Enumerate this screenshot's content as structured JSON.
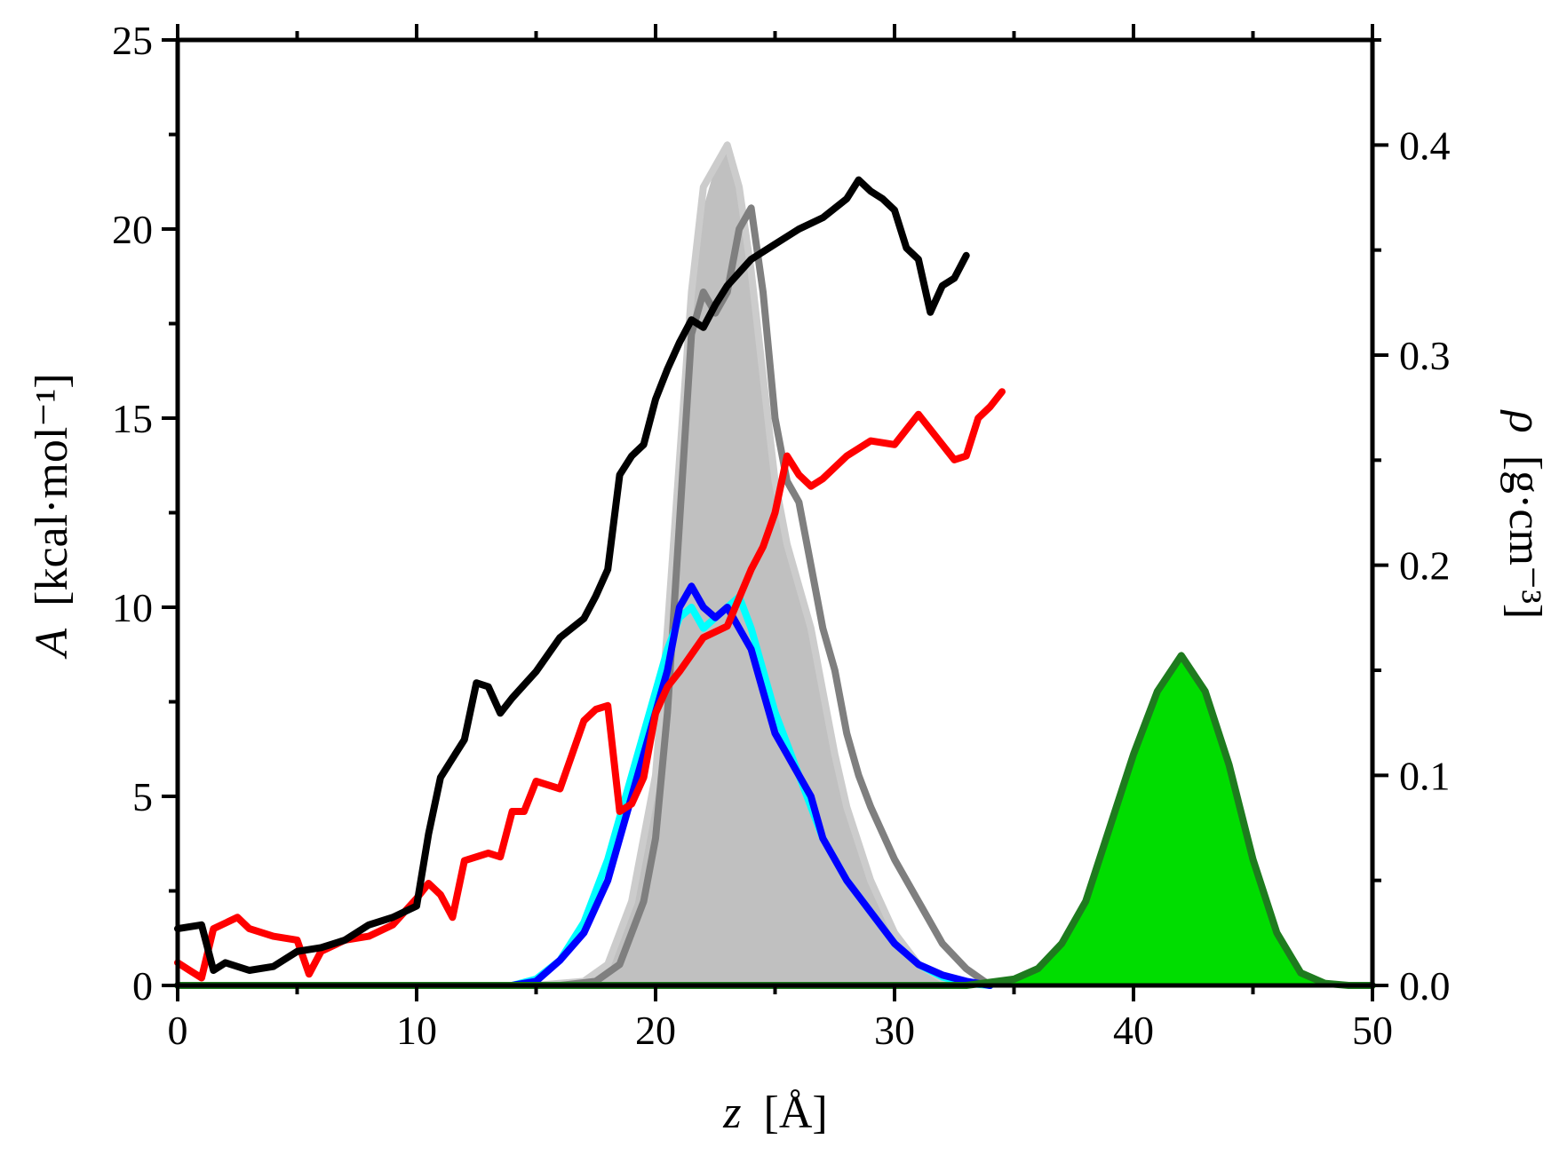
{
  "chart_data": {
    "type": "line",
    "x": {
      "label": "z [Å]",
      "label_var": "z",
      "label_unit": "[Å]",
      "range": [
        0,
        50
      ],
      "ticks": [
        0,
        10,
        20,
        30,
        40,
        50
      ]
    },
    "y_left": {
      "label_var": "A",
      "label_unit": "[kcal·mol⁻¹]",
      "range": [
        0,
        25
      ],
      "ticks": [
        0,
        5,
        10,
        15,
        20,
        25
      ]
    },
    "y_right": {
      "label_var": "ρ",
      "label_unit": "[g·cm⁻³]",
      "range": [
        0,
        0.45
      ],
      "ticks": [
        0.0,
        0.1,
        0.2,
        0.3,
        0.4
      ],
      "tick_labels": [
        "0.0",
        "0.1",
        "0.2",
        "0.3",
        "0.4"
      ]
    },
    "x_tick_labels": [
      "0",
      "10",
      "20",
      "30",
      "40",
      "50"
    ],
    "y_left_tick_labels": [
      "0",
      "5",
      "10",
      "15",
      "20",
      "25"
    ],
    "series": [
      {
        "axis": "right",
        "kind": "area",
        "color": "#c0c0c0",
        "points": [
          [
            15,
            0
          ],
          [
            17,
            0.002
          ],
          [
            18,
            0.01
          ],
          [
            19,
            0.04
          ],
          [
            20,
            0.1
          ],
          [
            20.5,
            0.16
          ],
          [
            21,
            0.24
          ],
          [
            21.5,
            0.32
          ],
          [
            22,
            0.37
          ],
          [
            22.5,
            0.39
          ],
          [
            23,
            0.4
          ],
          [
            23.5,
            0.38
          ],
          [
            24,
            0.34
          ],
          [
            24.5,
            0.29
          ],
          [
            25,
            0.24
          ],
          [
            25.5,
            0.21
          ],
          [
            26,
            0.19
          ],
          [
            26.5,
            0.17
          ],
          [
            27,
            0.14
          ],
          [
            27.5,
            0.11
          ],
          [
            28,
            0.085
          ],
          [
            29,
            0.05
          ],
          [
            30,
            0.025
          ],
          [
            31,
            0.01
          ],
          [
            32,
            0.003
          ],
          [
            33,
            0
          ]
        ]
      },
      {
        "axis": "right",
        "kind": "line",
        "color": "#cccccc",
        "points": [
          [
            15,
            0
          ],
          [
            17,
            0.002
          ],
          [
            18,
            0.01
          ],
          [
            19,
            0.04
          ],
          [
            20,
            0.1
          ],
          [
            20.5,
            0.17
          ],
          [
            21,
            0.25
          ],
          [
            21.5,
            0.33
          ],
          [
            22,
            0.38
          ],
          [
            22.5,
            0.39
          ],
          [
            23,
            0.4
          ],
          [
            23.5,
            0.38
          ],
          [
            24,
            0.34
          ],
          [
            24.5,
            0.29
          ],
          [
            25,
            0.24
          ],
          [
            25.5,
            0.21
          ],
          [
            26,
            0.19
          ],
          [
            26.5,
            0.17
          ],
          [
            27,
            0.14
          ],
          [
            27.5,
            0.11
          ],
          [
            28,
            0.085
          ],
          [
            29,
            0.05
          ],
          [
            30,
            0.025
          ],
          [
            31,
            0.01
          ],
          [
            32,
            0.003
          ],
          [
            33,
            0
          ]
        ]
      },
      {
        "axis": "right",
        "kind": "line",
        "color": "#7f7f7f",
        "points": [
          [
            16,
            0
          ],
          [
            17.5,
            0.002
          ],
          [
            18.5,
            0.01
          ],
          [
            19.5,
            0.04
          ],
          [
            20,
            0.07
          ],
          [
            20.5,
            0.13
          ],
          [
            21,
            0.22
          ],
          [
            21.5,
            0.31
          ],
          [
            22,
            0.33
          ],
          [
            22.5,
            0.32
          ],
          [
            23,
            0.33
          ],
          [
            23.5,
            0.36
          ],
          [
            24,
            0.37
          ],
          [
            24.5,
            0.33
          ],
          [
            25,
            0.27
          ],
          [
            25.5,
            0.24
          ],
          [
            26,
            0.23
          ],
          [
            26.5,
            0.2
          ],
          [
            27,
            0.17
          ],
          [
            27.5,
            0.15
          ],
          [
            28,
            0.12
          ],
          [
            28.5,
            0.1
          ],
          [
            29,
            0.085
          ],
          [
            30,
            0.06
          ],
          [
            31,
            0.04
          ],
          [
            32,
            0.02
          ],
          [
            33,
            0.008
          ],
          [
            34,
            0
          ]
        ]
      },
      {
        "axis": "right",
        "kind": "line",
        "color": "#00ffff",
        "points": [
          [
            14,
            0
          ],
          [
            15,
            0.003
          ],
          [
            16,
            0.012
          ],
          [
            17,
            0.03
          ],
          [
            18,
            0.06
          ],
          [
            19,
            0.1
          ],
          [
            20,
            0.14
          ],
          [
            20.5,
            0.16
          ],
          [
            21,
            0.175
          ],
          [
            21.5,
            0.18
          ],
          [
            22,
            0.17
          ],
          [
            22.5,
            0.175
          ],
          [
            23,
            0.18
          ],
          [
            23.5,
            0.185
          ],
          [
            24,
            0.17
          ],
          [
            24.5,
            0.15
          ],
          [
            25,
            0.13
          ],
          [
            25.5,
            0.115
          ],
          [
            26,
            0.1
          ],
          [
            26.5,
            0.085
          ],
          [
            27,
            0.07
          ],
          [
            27.5,
            0.06
          ],
          [
            28,
            0.05
          ],
          [
            29,
            0.035
          ],
          [
            30,
            0.02
          ],
          [
            31,
            0.01
          ],
          [
            32,
            0.004
          ],
          [
            33,
            0.001
          ],
          [
            34,
            0
          ]
        ]
      },
      {
        "axis": "right",
        "kind": "line",
        "color": "#0000ff",
        "points": [
          [
            14,
            0
          ],
          [
            15,
            0.002
          ],
          [
            16,
            0.012
          ],
          [
            17,
            0.025
          ],
          [
            18,
            0.05
          ],
          [
            19,
            0.09
          ],
          [
            20,
            0.13
          ],
          [
            20.5,
            0.15
          ],
          [
            21,
            0.18
          ],
          [
            21.5,
            0.19
          ],
          [
            22,
            0.18
          ],
          [
            22.5,
            0.175
          ],
          [
            23,
            0.18
          ],
          [
            23.5,
            0.17
          ],
          [
            24,
            0.16
          ],
          [
            24.5,
            0.14
          ],
          [
            25,
            0.12
          ],
          [
            25.5,
            0.11
          ],
          [
            26,
            0.1
          ],
          [
            26.5,
            0.09
          ],
          [
            27,
            0.07
          ],
          [
            27.5,
            0.06
          ],
          [
            28,
            0.05
          ],
          [
            29,
            0.035
          ],
          [
            30,
            0.02
          ],
          [
            31,
            0.01
          ],
          [
            32,
            0.005
          ],
          [
            33,
            0.002
          ],
          [
            34,
            0
          ]
        ]
      },
      {
        "axis": "right",
        "kind": "area",
        "color": "#00dd00",
        "points": [
          [
            33,
            0
          ],
          [
            35,
            0.003
          ],
          [
            36,
            0.008
          ],
          [
            37,
            0.02
          ],
          [
            38,
            0.04
          ],
          [
            39,
            0.075
          ],
          [
            40,
            0.11
          ],
          [
            41,
            0.14
          ],
          [
            42,
            0.157
          ],
          [
            43,
            0.14
          ],
          [
            44,
            0.105
          ],
          [
            45,
            0.06
          ],
          [
            46,
            0.025
          ],
          [
            47,
            0.006
          ],
          [
            48,
            0.001
          ],
          [
            49,
            0
          ]
        ]
      },
      {
        "axis": "right",
        "kind": "line",
        "color": "#1e7b1e",
        "points": [
          [
            0,
            0
          ],
          [
            33,
            0
          ],
          [
            35,
            0.003
          ],
          [
            36,
            0.008
          ],
          [
            37,
            0.02
          ],
          [
            38,
            0.04
          ],
          [
            39,
            0.075
          ],
          [
            40,
            0.11
          ],
          [
            41,
            0.14
          ],
          [
            42,
            0.157
          ],
          [
            43,
            0.14
          ],
          [
            44,
            0.105
          ],
          [
            45,
            0.06
          ],
          [
            46,
            0.025
          ],
          [
            47,
            0.006
          ],
          [
            48,
            0.001
          ],
          [
            49,
            0
          ],
          [
            50,
            0
          ]
        ]
      },
      {
        "axis": "left",
        "kind": "line",
        "color": "#ff0000",
        "points": [
          [
            0,
            0.6
          ],
          [
            0.5,
            0.4
          ],
          [
            1,
            0.2
          ],
          [
            1.5,
            1.5
          ],
          [
            2.5,
            1.8
          ],
          [
            3,
            1.5
          ],
          [
            4,
            1.3
          ],
          [
            5,
            1.2
          ],
          [
            5.5,
            0.3
          ],
          [
            6,
            0.9
          ],
          [
            7,
            1.2
          ],
          [
            8,
            1.3
          ],
          [
            9,
            1.6
          ],
          [
            10,
            2.3
          ],
          [
            10.5,
            2.7
          ],
          [
            11,
            2.4
          ],
          [
            11.5,
            1.8
          ],
          [
            12,
            3.3
          ],
          [
            13,
            3.5
          ],
          [
            13.5,
            3.4
          ],
          [
            14,
            4.6
          ],
          [
            14.5,
            4.6
          ],
          [
            15,
            5.4
          ],
          [
            16,
            5.2
          ],
          [
            16.5,
            6.1
          ],
          [
            17,
            7.0
          ],
          [
            17.5,
            7.3
          ],
          [
            18,
            7.4
          ],
          [
            18.5,
            4.6
          ],
          [
            19,
            4.8
          ],
          [
            19.5,
            5.5
          ],
          [
            20,
            7.2
          ],
          [
            20.5,
            7.9
          ],
          [
            21,
            8.3
          ],
          [
            22,
            9.2
          ],
          [
            23,
            9.5
          ],
          [
            24,
            11.0
          ],
          [
            24.5,
            11.6
          ],
          [
            25,
            12.5
          ],
          [
            25.5,
            14.0
          ],
          [
            26,
            13.5
          ],
          [
            26.5,
            13.2
          ],
          [
            27,
            13.4
          ],
          [
            28,
            14.0
          ],
          [
            29,
            14.4
          ],
          [
            30,
            14.3
          ],
          [
            31,
            15.1
          ],
          [
            32,
            14.3
          ],
          [
            32.5,
            13.9
          ],
          [
            33,
            14.0
          ],
          [
            33.5,
            15.0
          ],
          [
            34,
            15.3
          ],
          [
            34.5,
            15.7
          ]
        ]
      },
      {
        "axis": "left",
        "kind": "line",
        "color": "#000000",
        "points": [
          [
            0,
            1.5
          ],
          [
            1,
            1.6
          ],
          [
            1.5,
            0.4
          ],
          [
            2,
            0.6
          ],
          [
            3,
            0.4
          ],
          [
            4,
            0.5
          ],
          [
            5,
            0.9
          ],
          [
            6,
            1.0
          ],
          [
            7,
            1.2
          ],
          [
            8,
            1.6
          ],
          [
            9,
            1.8
          ],
          [
            10,
            2.1
          ],
          [
            10.5,
            4.0
          ],
          [
            11,
            5.5
          ],
          [
            12,
            6.5
          ],
          [
            12.5,
            8.0
          ],
          [
            13,
            7.9
          ],
          [
            13.5,
            7.2
          ],
          [
            14,
            7.6
          ],
          [
            15,
            8.3
          ],
          [
            16,
            9.2
          ],
          [
            17,
            9.7
          ],
          [
            17.5,
            10.3
          ],
          [
            18,
            11.0
          ],
          [
            18.5,
            13.5
          ],
          [
            19,
            14.0
          ],
          [
            19.5,
            14.3
          ],
          [
            20,
            15.5
          ],
          [
            20.5,
            16.3
          ],
          [
            21,
            17.0
          ],
          [
            21.5,
            17.6
          ],
          [
            22,
            17.4
          ],
          [
            22.5,
            18.0
          ],
          [
            23,
            18.5
          ],
          [
            24,
            19.2
          ],
          [
            25,
            19.6
          ],
          [
            26,
            20.0
          ],
          [
            27,
            20.3
          ],
          [
            28,
            20.8
          ],
          [
            28.5,
            21.3
          ],
          [
            29,
            21.0
          ],
          [
            29.5,
            20.8
          ],
          [
            30,
            20.5
          ],
          [
            30.5,
            19.5
          ],
          [
            31,
            19.2
          ],
          [
            31.5,
            17.8
          ],
          [
            32,
            18.5
          ],
          [
            32.5,
            18.7
          ],
          [
            33,
            19.3
          ]
        ]
      }
    ]
  }
}
